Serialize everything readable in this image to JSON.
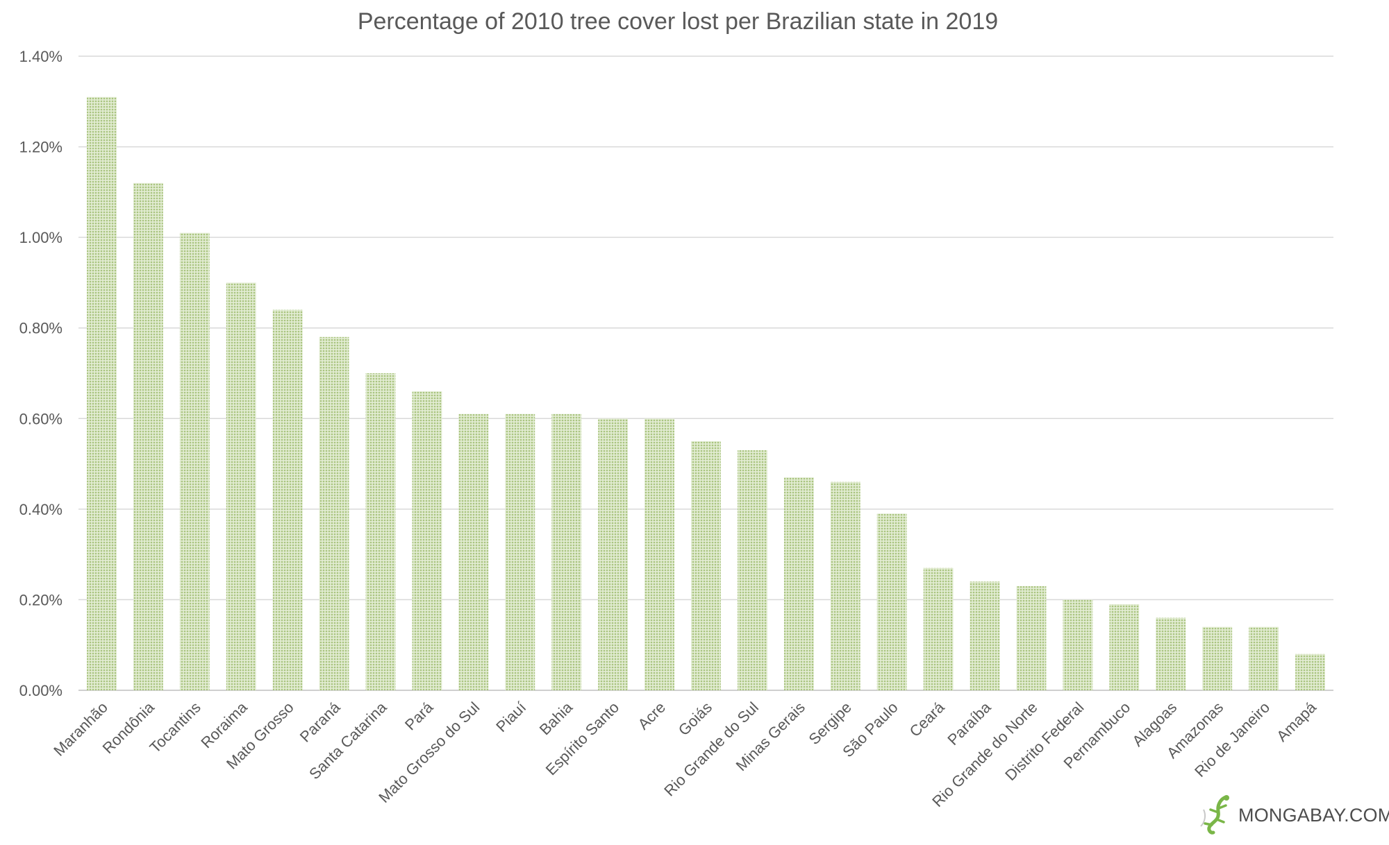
{
  "chart_data": {
    "type": "bar",
    "title": "Percentage of 2010 tree cover lost per Brazilian state in 2019",
    "xlabel": "",
    "ylabel": "",
    "ylim": [
      0,
      1.4
    ],
    "ytick_values": [
      0,
      0.2,
      0.4,
      0.6,
      0.8,
      1.0,
      1.2,
      1.4
    ],
    "ytick_labels": [
      "0.00%",
      "0.20%",
      "0.40%",
      "0.60%",
      "0.80%",
      "1.00%",
      "1.20%",
      "1.40%"
    ],
    "grid": true,
    "legend": "none",
    "categories": [
      "Maranhão",
      "Rondônia",
      "Tocantins",
      "Roraima",
      "Mato Grosso",
      "Paraná",
      "Santa Catarina",
      "Pará",
      "Mato Grosso do Sul",
      "Piauí",
      "Bahia",
      "Espírito Santo",
      "Acre",
      "Goiás",
      "Rio Grande do Sul",
      "Minas Gerais",
      "Sergipe",
      "São Paulo",
      "Ceará",
      "Paraíba",
      "Rio Grande do Norte",
      "Distrito Federal",
      "Pernambuco",
      "Alagoas",
      "Amazonas",
      "Rio de Janeiro",
      "Amapá"
    ],
    "values": [
      1.31,
      1.12,
      1.01,
      0.9,
      0.84,
      0.78,
      0.7,
      0.66,
      0.61,
      0.61,
      0.61,
      0.6,
      0.6,
      0.55,
      0.53,
      0.47,
      0.46,
      0.39,
      0.27,
      0.24,
      0.23,
      0.2,
      0.19,
      0.16,
      0.14,
      0.14,
      0.08
    ],
    "colors": {
      "bar": "#a9c47f",
      "bar_light": "#e2ecd2",
      "grid": "#d9d9d9",
      "text": "#595959"
    }
  },
  "brand": {
    "text": "MONGABAY.COM",
    "logo": "gecko-icon",
    "color": "#7ab648"
  }
}
